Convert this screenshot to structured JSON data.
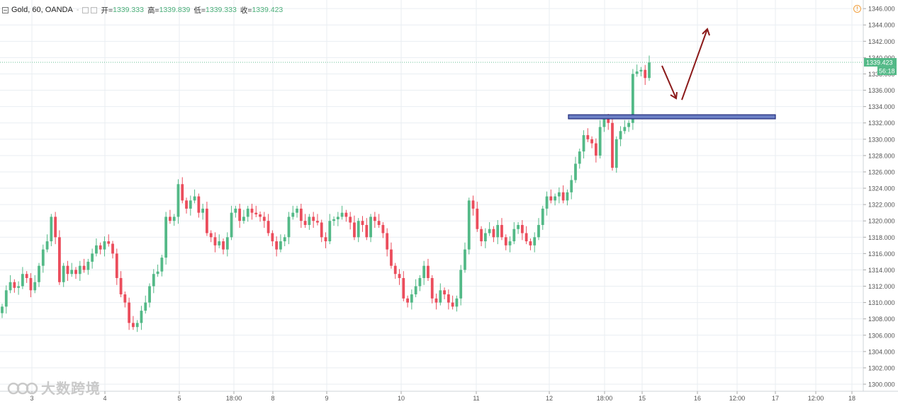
{
  "header": {
    "symbol_label": "Gold, 60, OANDA",
    "dash": "-",
    "open_label": "开=",
    "open_value": "1339.333",
    "high_label": "高=",
    "high_value": "1339.839",
    "low_label": "低=",
    "low_value": "1339.333",
    "close_label": "收=",
    "close_value": "1339.423"
  },
  "warning_icon_text": "!",
  "watermark_text": "大数跨境",
  "price_badge": {
    "value": "1339.423",
    "countdown": "56:18"
  },
  "colors": {
    "up": "#53b987",
    "down": "#eb4d5c",
    "grid": "#e9eef2",
    "support_zone": "#6b7fc4",
    "support_border": "#1f2a7a",
    "arrow": "#8b1a1a",
    "price_badge": "#53b987"
  },
  "chart_data": {
    "type": "candlestick",
    "title": "Gold, 60, OANDA",
    "ylim": [
      1299,
      1347
    ],
    "y_ticks": [
      "1300.000",
      "1302.000",
      "1304.000",
      "1306.000",
      "1308.000",
      "1310.000",
      "1312.000",
      "1314.000",
      "1316.000",
      "1318.000",
      "1320.000",
      "1322.000",
      "1324.000",
      "1326.000",
      "1328.000",
      "1330.000",
      "1332.000",
      "1334.000",
      "1336.000",
      "1338.000",
      "1340.000",
      "1342.000",
      "1344.000",
      "1346.000"
    ],
    "x_ticks": [
      "3",
      "4",
      "5",
      "18:00",
      "8",
      "9",
      "10",
      "11",
      "12",
      "18:00",
      "15",
      "16",
      "12:00",
      "17",
      "12:00",
      "18"
    ],
    "last_price": 1339.423,
    "support_zone": {
      "low": 1332.5,
      "high": 1333.0
    },
    "forecast_path": [
      1339.0,
      1335.0,
      1343.5
    ],
    "closes": [
      1309.5,
      1311.5,
      1312.5,
      1311.8,
      1312.0,
      1313.5,
      1313.0,
      1311.5,
      1312.5,
      1314.5,
      1316.5,
      1317.5,
      1320.5,
      1318.0,
      1312.5,
      1314.5,
      1313.5,
      1314.0,
      1313.5,
      1314.5,
      1314.0,
      1315.0,
      1316.0,
      1317.0,
      1316.5,
      1317.5,
      1317.2,
      1316.0,
      1313.0,
      1311.0,
      1310.0,
      1307.5,
      1307.0,
      1307.5,
      1309.0,
      1310.0,
      1312.0,
      1313.5,
      1313.8,
      1315.5,
      1320.5,
      1320.0,
      1320.5,
      1324.5,
      1322.5,
      1321.5,
      1322.5,
      1323.0,
      1321.0,
      1321.5,
      1318.5,
      1318.0,
      1317.0,
      1317.5,
      1316.5,
      1318.0,
      1321.0,
      1321.5,
      1320.0,
      1320.5,
      1321.5,
      1321.0,
      1320.8,
      1320.5,
      1320.0,
      1318.5,
      1317.5,
      1316.5,
      1317.5,
      1318.0,
      1320.5,
      1321.0,
      1321.5,
      1320.0,
      1319.5,
      1320.5,
      1320.0,
      1319.8,
      1318.0,
      1317.5,
      1320.0,
      1320.2,
      1320.5,
      1321.0,
      1320.5,
      1319.8,
      1318.0,
      1320.0,
      1319.5,
      1318.0,
      1320.5,
      1320.0,
      1319.5,
      1318.5,
      1316.5,
      1314.5,
      1313.5,
      1313.0,
      1310.5,
      1310.0,
      1311.0,
      1312.0,
      1313.0,
      1314.5,
      1313.0,
      1310.5,
      1310.0,
      1311.5,
      1311.0,
      1310.0,
      1309.5,
      1310.5,
      1314.0,
      1316.5,
      1322.5,
      1321.5,
      1319.0,
      1317.5,
      1318.5,
      1319.0,
      1318.0,
      1319.5,
      1318.0,
      1317.0,
      1317.5,
      1319.0,
      1319.5,
      1318.5,
      1317.5,
      1317.0,
      1318.0,
      1319.5,
      1321.5,
      1323.0,
      1322.5,
      1323.0,
      1323.5,
      1322.5,
      1323.5,
      1325.0,
      1327.0,
      1328.5,
      1330.5,
      1330.0,
      1329.5,
      1328.0,
      1331.5,
      1332.5,
      1332.0,
      1326.5,
      1330.0,
      1331.0,
      1331.5,
      1332.0,
      1338.0,
      1338.3,
      1338.5,
      1337.5,
      1339.4
    ],
    "series": []
  }
}
